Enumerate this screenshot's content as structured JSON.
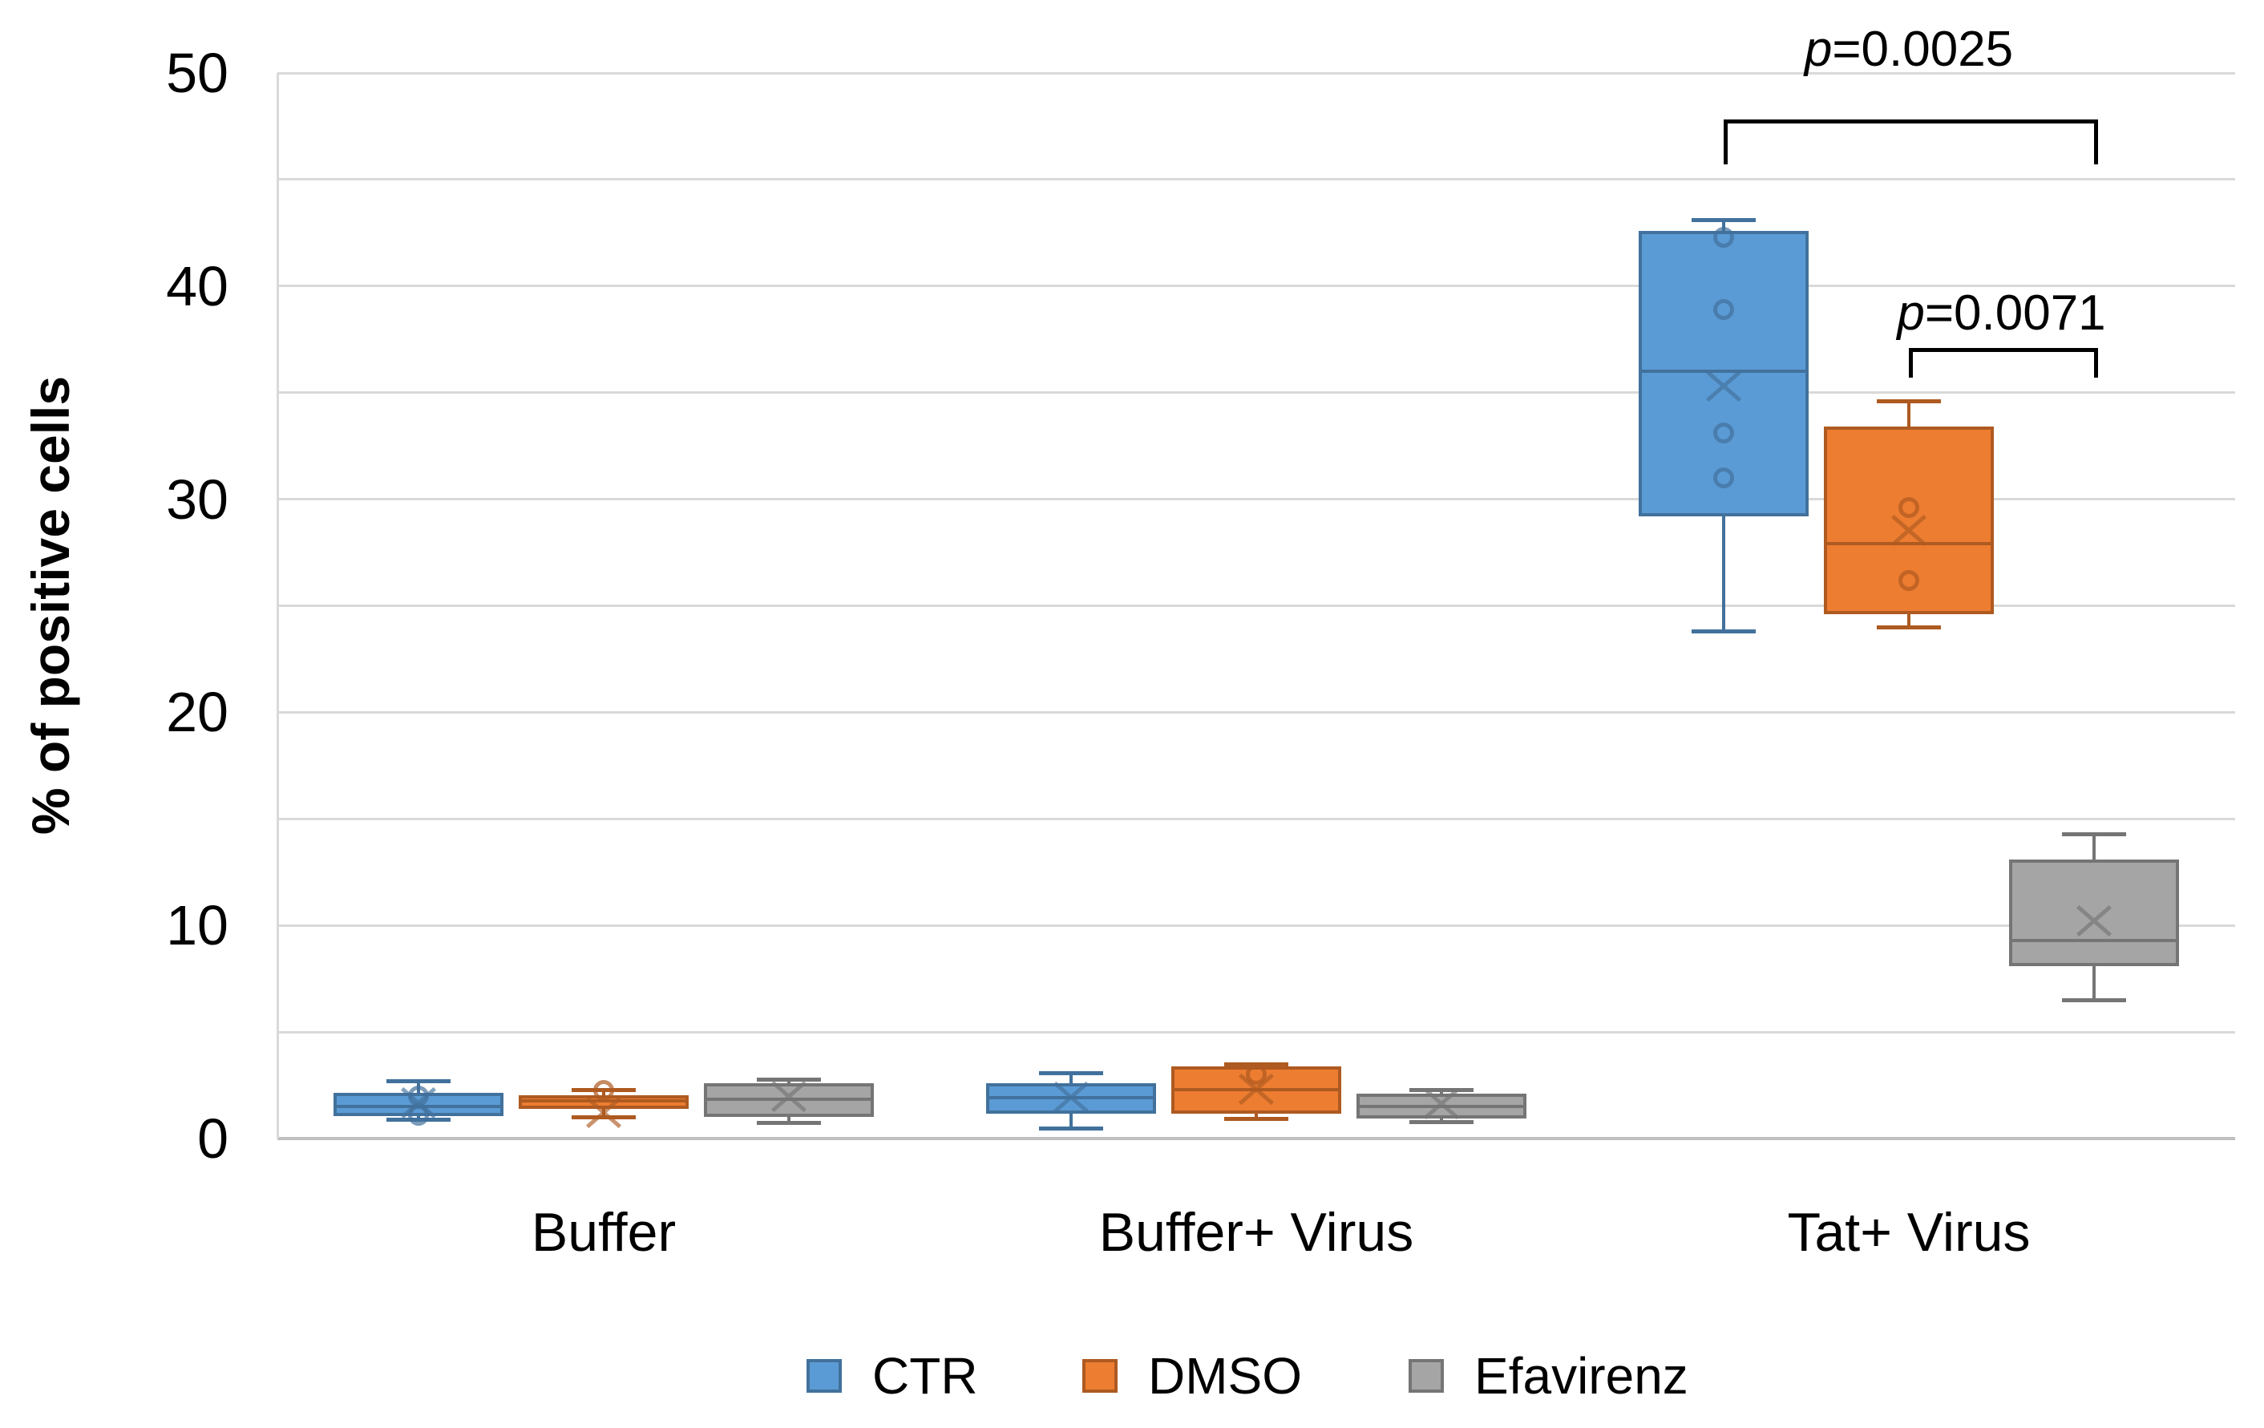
{
  "figure": {
    "background": "#FFFFFF"
  },
  "chart_data": {
    "type": "boxplot",
    "title": "",
    "xlabel": "",
    "ylabel": "% of positive cells",
    "ylim": [
      0,
      50
    ],
    "y_grid_step": 5,
    "y_label_step": 10,
    "y_tick_labels": [
      "0",
      "10",
      "20",
      "30",
      "40",
      "50"
    ],
    "grid": "on",
    "legend_position": "bottom",
    "categories": [
      "Buffer",
      "Buffer+ Virus",
      "Tat+ Virus"
    ],
    "series": [
      {
        "name": "CTR",
        "fill": "#5B9BD5",
        "stroke": "#41719C",
        "boxes": [
          {
            "category": "Buffer",
            "min": 0.9,
            "q1": 1.05,
            "median": 1.5,
            "q3": 2.15,
            "max": 2.7,
            "mean": 1.65,
            "points": [
              2.0,
              1.1
            ]
          },
          {
            "category": "Buffer+ Virus",
            "min": 0.5,
            "q1": 1.15,
            "median": 1.9,
            "q3": 2.6,
            "max": 3.1,
            "mean": 1.9,
            "points": []
          },
          {
            "category": "Tat+ Virus",
            "min": 23.8,
            "q1": 29.2,
            "median": 36.0,
            "q3": 42.6,
            "max": 43.1,
            "mean": 35.3,
            "points": [
              42.3,
              38.9,
              33.1,
              31.0
            ]
          }
        ]
      },
      {
        "name": "DMSO",
        "fill": "#ED7D31",
        "stroke": "#AE5A21",
        "boxes": [
          {
            "category": "Buffer",
            "min": 1.0,
            "q1": 1.4,
            "median": 1.75,
            "q3": 2.05,
            "max": 2.3,
            "mean": 1.2,
            "points": [
              2.25
            ]
          },
          {
            "category": "Buffer+ Virus",
            "min": 0.95,
            "q1": 1.15,
            "median": 2.3,
            "q3": 3.4,
            "max": 3.5,
            "mean": 2.3,
            "points": [
              3.0
            ]
          },
          {
            "category": "Tat+ Virus",
            "min": 24.0,
            "q1": 24.6,
            "median": 27.9,
            "q3": 33.4,
            "max": 34.6,
            "mean": 28.5,
            "points": [
              29.6,
              26.2
            ]
          }
        ]
      },
      {
        "name": "Efavirenz",
        "fill": "#A5A5A5",
        "stroke": "#757575",
        "boxes": [
          {
            "category": "Buffer",
            "min": 0.75,
            "q1": 1.0,
            "median": 1.85,
            "q3": 2.6,
            "max": 2.8,
            "mean": 1.95,
            "points": []
          },
          {
            "category": "Buffer+ Virus",
            "min": 0.78,
            "q1": 0.95,
            "median": 1.5,
            "q3": 2.1,
            "max": 2.3,
            "mean": 1.6,
            "points": []
          },
          {
            "category": "Tat+ Virus",
            "min": 6.5,
            "q1": 8.1,
            "median": 9.3,
            "q3": 13.1,
            "max": 14.3,
            "mean": 10.2,
            "points": []
          }
        ]
      }
    ],
    "annotations": [
      {
        "text": "p=0.0025",
        "label_italic": "p",
        "label_rest": "=0.0025",
        "from": {
          "category": "Tat+ Virus",
          "series": "CTR"
        },
        "to": {
          "category": "Tat+ Virus",
          "series": "Efavirenz"
        },
        "bar_value": 47.8,
        "tick_to_value": 45.7,
        "label_value": 51.1
      },
      {
        "text": "p=0.0071",
        "label_italic": "p",
        "label_rest": "=0.0071",
        "from": {
          "category": "Tat+ Virus",
          "series": "DMSO"
        },
        "to": {
          "category": "Tat+ Virus",
          "series": "Efavirenz"
        },
        "bar_value": 37.1,
        "tick_to_value": 35.7,
        "label_value": 38.7
      }
    ],
    "colors": {
      "gridline": "#D9D9D9",
      "axis": "#BFBFBF",
      "annotation": "#000000",
      "text": "#000000"
    }
  }
}
